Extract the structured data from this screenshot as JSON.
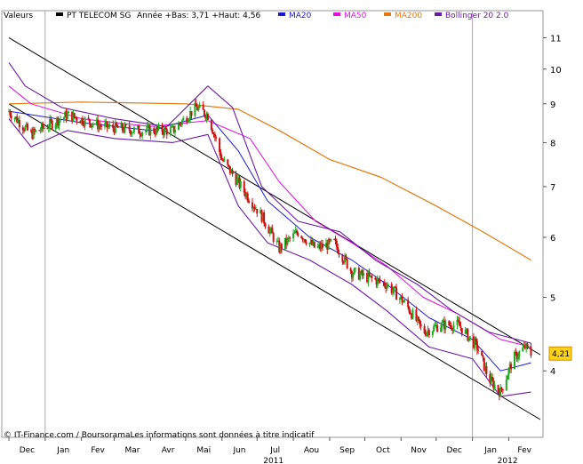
{
  "legend": {
    "label": "Valeurs",
    "items": [
      {
        "name": "PT TELECOM SG",
        "color": "#000000"
      },
      {
        "name": "Année +Bas: 3,71 +Haut: 4,56",
        "color": null
      },
      {
        "name": "MA20",
        "color": "#1a1ad0"
      },
      {
        "name": "MA50",
        "color": "#e010e0"
      },
      {
        "name": "MA200",
        "color": "#e07a10"
      },
      {
        "name": "Bollinger 20 2.0",
        "color": "#6a1aa8"
      }
    ]
  },
  "footer_text": "© IT-Finance.com / BoursoramaLes informations sont données à titre indicatif",
  "last_price_label": "4,21",
  "year_labels": [
    "2011",
    "2012"
  ],
  "chart_data": {
    "type": "candlestick",
    "title": "",
    "y_scale": "log",
    "ylim": [
      3.45,
      11.5
    ],
    "y_ticks": [
      {
        "label": "11",
        "value": 11
      },
      {
        "label": "10",
        "value": 10
      },
      {
        "label": "9",
        "value": 9
      },
      {
        "label": "8",
        "value": 8
      },
      {
        "label": "7",
        "value": 7
      },
      {
        "label": "6",
        "value": 6
      },
      {
        "label": "5",
        "value": 5
      },
      {
        "label": "4",
        "value": 4
      }
    ],
    "x_ticks": [
      "Dec",
      "Jan",
      "Fev",
      "Mar",
      "Avr",
      "Mai",
      "Jun",
      "Jul",
      "Aou",
      "Sep",
      "Oct",
      "Nov",
      "Dec",
      "Jan",
      "Fev"
    ],
    "grid": "vertical lines at year boundaries",
    "colors": {
      "up": "#1faa1f",
      "down": "#cc1111",
      "ma20": "#1a1ad0",
      "ma50": "#e010e0",
      "ma200": "#e07a10",
      "bollinger": "#6a1aa8",
      "last_label_bg": "#ffd21a"
    },
    "series": [
      {
        "name": "PT TELECOM SG",
        "type": "candlestick",
        "approx_path": [
          {
            "date": "2010-12-01",
            "close": 8.8
          },
          {
            "date": "2010-12-20",
            "close": 8.2
          },
          {
            "date": "2011-01-20",
            "close": 8.7
          },
          {
            "date": "2011-02-20",
            "close": 8.4
          },
          {
            "date": "2011-03-20",
            "close": 8.3
          },
          {
            "date": "2011-04-20",
            "close": 8.3
          },
          {
            "date": "2011-05-10",
            "close": 8.9
          },
          {
            "date": "2011-05-20",
            "close": 8.7
          },
          {
            "date": "2011-06-01",
            "close": 7.6
          },
          {
            "date": "2011-06-20",
            "close": 6.9
          },
          {
            "date": "2011-07-05",
            "close": 6.4
          },
          {
            "date": "2011-07-20",
            "close": 5.8
          },
          {
            "date": "2011-08-05",
            "close": 6.1
          },
          {
            "date": "2011-08-20",
            "close": 5.8
          },
          {
            "date": "2011-09-05",
            "close": 5.9
          },
          {
            "date": "2011-09-20",
            "close": 5.4
          },
          {
            "date": "2011-10-05",
            "close": 5.3
          },
          {
            "date": "2011-10-20",
            "close": 5.2
          },
          {
            "date": "2011-11-05",
            "close": 4.9
          },
          {
            "date": "2011-11-20",
            "close": 4.5
          },
          {
            "date": "2011-12-05",
            "close": 4.6
          },
          {
            "date": "2011-12-20",
            "close": 4.6
          },
          {
            "date": "2012-01-05",
            "close": 4.3
          },
          {
            "date": "2012-01-15",
            "close": 3.9
          },
          {
            "date": "2012-01-25",
            "close": 3.75
          },
          {
            "date": "2012-02-05",
            "close": 4.15
          },
          {
            "date": "2012-02-15",
            "close": 4.3
          },
          {
            "date": "2012-02-20",
            "close": 4.21
          }
        ]
      },
      {
        "name": "MA20",
        "values": [
          {
            "date": "2010-12-01",
            "value": 8.8
          },
          {
            "date": "2011-02-01",
            "value": 8.5
          },
          {
            "date": "2011-04-01",
            "value": 8.3
          },
          {
            "date": "2011-05-20",
            "value": 8.7
          },
          {
            "date": "2011-06-15",
            "value": 7.8
          },
          {
            "date": "2011-07-10",
            "value": 6.7
          },
          {
            "date": "2011-08-15",
            "value": 6.0
          },
          {
            "date": "2011-09-20",
            "value": 5.6
          },
          {
            "date": "2011-10-20",
            "value": 5.2
          },
          {
            "date": "2011-11-25",
            "value": 4.7
          },
          {
            "date": "2012-01-01",
            "value": 4.4
          },
          {
            "date": "2012-01-25",
            "value": 4.0
          },
          {
            "date": "2012-02-20",
            "value": 4.1
          }
        ]
      },
      {
        "name": "MA50",
        "values": [
          {
            "date": "2010-12-01",
            "value": 9.5
          },
          {
            "date": "2010-12-20",
            "value": 9.0
          },
          {
            "date": "2011-02-01",
            "value": 8.6
          },
          {
            "date": "2011-04-01",
            "value": 8.4
          },
          {
            "date": "2011-05-20",
            "value": 8.55
          },
          {
            "date": "2011-06-25",
            "value": 8.1
          },
          {
            "date": "2011-07-20",
            "value": 7.1
          },
          {
            "date": "2011-08-20",
            "value": 6.3
          },
          {
            "date": "2011-09-20",
            "value": 5.9
          },
          {
            "date": "2011-10-20",
            "value": 5.5
          },
          {
            "date": "2011-11-20",
            "value": 5.0
          },
          {
            "date": "2011-12-20",
            "value": 4.75
          },
          {
            "date": "2012-01-25",
            "value": 4.4
          },
          {
            "date": "2012-02-20",
            "value": 4.3
          }
        ]
      },
      {
        "name": "MA200",
        "values": [
          {
            "date": "2010-12-01",
            "value": 9.0
          },
          {
            "date": "2011-02-01",
            "value": 9.05
          },
          {
            "date": "2011-05-01",
            "value": 9.0
          },
          {
            "date": "2011-06-15",
            "value": 8.85
          },
          {
            "date": "2011-07-20",
            "value": 8.3
          },
          {
            "date": "2011-09-01",
            "value": 7.6
          },
          {
            "date": "2011-10-15",
            "value": 7.2
          },
          {
            "date": "2011-12-01",
            "value": 6.6
          },
          {
            "date": "2012-01-10",
            "value": 6.1
          },
          {
            "date": "2012-02-20",
            "value": 5.6
          }
        ]
      },
      {
        "name": "Bollinger 20 2.0",
        "upper": [
          {
            "date": "2010-12-01",
            "value": 10.2
          },
          {
            "date": "2010-12-15",
            "value": 9.5
          },
          {
            "date": "2011-01-15",
            "value": 8.9
          },
          {
            "date": "2011-03-01",
            "value": 8.6
          },
          {
            "date": "2011-04-15",
            "value": 8.4
          },
          {
            "date": "2011-05-20",
            "value": 9.5
          },
          {
            "date": "2011-06-10",
            "value": 8.9
          },
          {
            "date": "2011-07-05",
            "value": 7.0
          },
          {
            "date": "2011-08-05",
            "value": 6.3
          },
          {
            "date": "2011-09-10",
            "value": 6.1
          },
          {
            "date": "2011-10-10",
            "value": 5.6
          },
          {
            "date": "2011-11-15",
            "value": 5.2
          },
          {
            "date": "2011-12-15",
            "value": 4.8
          },
          {
            "date": "2012-01-15",
            "value": 4.5
          },
          {
            "date": "2012-02-20",
            "value": 4.35
          }
        ],
        "lower": [
          {
            "date": "2010-12-01",
            "value": 8.6
          },
          {
            "date": "2010-12-20",
            "value": 7.9
          },
          {
            "date": "2011-01-20",
            "value": 8.3
          },
          {
            "date": "2011-03-01",
            "value": 8.1
          },
          {
            "date": "2011-04-20",
            "value": 8.0
          },
          {
            "date": "2011-05-20",
            "value": 8.2
          },
          {
            "date": "2011-06-15",
            "value": 6.6
          },
          {
            "date": "2011-07-10",
            "value": 5.9
          },
          {
            "date": "2011-08-15",
            "value": 5.6
          },
          {
            "date": "2011-09-20",
            "value": 5.2
          },
          {
            "date": "2011-10-20",
            "value": 4.8
          },
          {
            "date": "2011-11-25",
            "value": 4.3
          },
          {
            "date": "2012-01-01",
            "value": 4.15
          },
          {
            "date": "2012-01-25",
            "value": 3.7
          },
          {
            "date": "2012-02-20",
            "value": 3.75
          }
        ]
      },
      {
        "name": "trend channel upper",
        "values": [
          {
            "date": "2010-12-01",
            "value": 11.0
          },
          {
            "date": "2012-02-28",
            "value": 4.2
          }
        ]
      },
      {
        "name": "trend channel lower",
        "values": [
          {
            "date": "2010-12-01",
            "value": 9.0
          },
          {
            "date": "2012-02-28",
            "value": 3.45
          }
        ]
      }
    ]
  }
}
